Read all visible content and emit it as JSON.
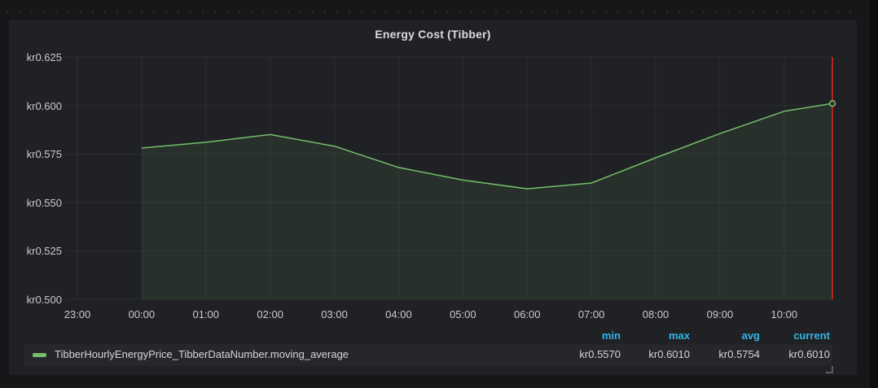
{
  "panel": {
    "title": "Energy Cost (Tibber)",
    "legend": {
      "series_label": "TibberHourlyEnergyPrice_TibberDataNumber.moving_average",
      "columns": [
        {
          "label": "min",
          "value": "kr0.5570"
        },
        {
          "label": "max",
          "value": "kr0.6010"
        },
        {
          "label": "avg",
          "value": "kr0.5754"
        },
        {
          "label": "current",
          "value": "kr0.6010"
        }
      ]
    }
  },
  "colors": {
    "series_green": "#73bf69",
    "area_fill": "rgba(115,191,105,0.10)",
    "header_blue": "#33b5e5",
    "now_line_red": "#b2271f",
    "gridline": "#2c2d31",
    "endpoint_fill": "#3b332a"
  },
  "chart_data": {
    "type": "area",
    "title": "Energy Cost (Tibber)",
    "unit_prefix": "kr",
    "xlabel": "",
    "ylabel": "",
    "grid": true,
    "legend_position": "bottom",
    "ylim": [
      0.5,
      0.625
    ],
    "y_ticks": [
      {
        "v": 0.625,
        "label": "kr0.625"
      },
      {
        "v": 0.6,
        "label": "kr0.600"
      },
      {
        "v": 0.575,
        "label": "kr0.575"
      },
      {
        "v": 0.55,
        "label": "kr0.550"
      },
      {
        "v": 0.525,
        "label": "kr0.525"
      },
      {
        "v": 0.5,
        "label": "kr0.500"
      }
    ],
    "x_ticks": [
      {
        "h": 0,
        "label": "23:00"
      },
      {
        "h": 1,
        "label": "00:00"
      },
      {
        "h": 2,
        "label": "01:00"
      },
      {
        "h": 3,
        "label": "02:00"
      },
      {
        "h": 4,
        "label": "03:00"
      },
      {
        "h": 5,
        "label": "04:00"
      },
      {
        "h": 6,
        "label": "05:00"
      },
      {
        "h": 7,
        "label": "06:00"
      },
      {
        "h": 8,
        "label": "07:00"
      },
      {
        "h": 9,
        "label": "08:00"
      },
      {
        "h": 10,
        "label": "09:00"
      },
      {
        "h": 11,
        "label": "10:00"
      }
    ],
    "series": [
      {
        "name": "TibberHourlyEnergyPrice_TibberDataNumber.moving_average",
        "color": "#73bf69",
        "points": [
          {
            "t": "00:00",
            "h": 1,
            "v": 0.578
          },
          {
            "t": "01:00",
            "h": 2,
            "v": 0.581
          },
          {
            "t": "02:00",
            "h": 3,
            "v": 0.585
          },
          {
            "t": "03:00",
            "h": 4,
            "v": 0.579
          },
          {
            "t": "04:00",
            "h": 5,
            "v": 0.568
          },
          {
            "t": "05:00",
            "h": 6,
            "v": 0.5615
          },
          {
            "t": "06:00",
            "h": 7,
            "v": 0.557
          },
          {
            "t": "07:00",
            "h": 8,
            "v": 0.56
          },
          {
            "t": "08:00",
            "h": 9,
            "v": 0.573
          },
          {
            "t": "09:00",
            "h": 10,
            "v": 0.5855
          },
          {
            "t": "10:00",
            "h": 11,
            "v": 0.597
          },
          {
            "t": "10:45",
            "h": 11.75,
            "v": 0.601
          }
        ]
      }
    ],
    "stats": {
      "min": "kr0.5570",
      "max": "kr0.6010",
      "avg": "kr0.5754",
      "current": "kr0.6010"
    },
    "layout": {
      "xlim_hours": [
        -0.19,
        11.75
      ],
      "now_hour": 11.75
    }
  }
}
